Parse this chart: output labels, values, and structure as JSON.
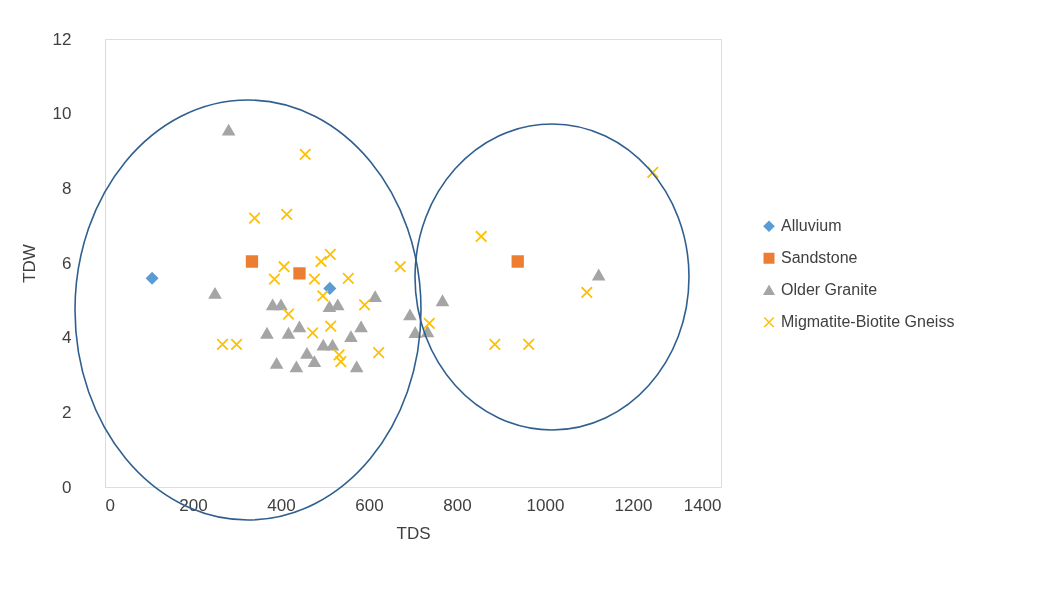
{
  "chart_data": {
    "type": "scatter",
    "xlabel": "TDS",
    "ylabel": "TDW",
    "xlim": [
      0,
      1400
    ],
    "xticks": [
      0,
      200,
      400,
      600,
      800,
      1000,
      1200,
      1400
    ],
    "ylim": [
      0,
      12
    ],
    "yticks": [
      0,
      2,
      4,
      6,
      8,
      10,
      12
    ],
    "grid": false,
    "legend": "right",
    "series": [
      {
        "name": "Alluvium",
        "color": "#5b9bd5",
        "marker": "diamond",
        "x": [
          107,
          511
        ],
        "values": [
          5.59,
          5.32
        ]
      },
      {
        "name": "Sandstone",
        "color": "#ed7d31",
        "marker": "square",
        "x": [
          334,
          442,
          938
        ],
        "values": [
          6.04,
          5.72,
          6.04
        ]
      },
      {
        "name": "Older Granite",
        "color": "#a5a5a5",
        "marker": "triangle",
        "x": [
          281,
          250,
          381,
          400,
          510,
          529,
          614,
          368,
          417,
          442,
          582,
          559,
          496,
          517,
          459,
          476,
          390,
          435,
          572,
          693,
          767,
          705,
          733,
          1122
        ],
        "values": [
          9.56,
          5.19,
          4.88,
          4.88,
          4.83,
          4.88,
          5.1,
          4.12,
          4.12,
          4.29,
          4.29,
          4.03,
          3.8,
          3.8,
          3.58,
          3.36,
          3.31,
          3.22,
          3.22,
          4.61,
          4.99,
          4.14,
          4.16,
          5.68
        ]
      },
      {
        "name": "Migmatite-Biotite Gneiss",
        "color": "#ffc000",
        "marker": "cross",
        "x": [
          455,
          340,
          413,
          512,
          491,
          407,
          671,
          385,
          476,
          553,
          495,
          590,
          417,
          513,
          472,
          267,
          299,
          622,
          532,
          536,
          737,
          855,
          886,
          963,
          1095,
          1245
        ],
        "values": [
          8.91,
          7.2,
          7.3,
          6.23,
          6.04,
          5.9,
          5.9,
          5.57,
          5.57,
          5.59,
          5.12,
          4.88,
          4.63,
          4.31,
          4.13,
          3.82,
          3.82,
          3.6,
          3.54,
          3.36,
          4.38,
          6.71,
          3.82,
          3.82,
          5.21,
          8.43
        ]
      }
    ]
  }
}
